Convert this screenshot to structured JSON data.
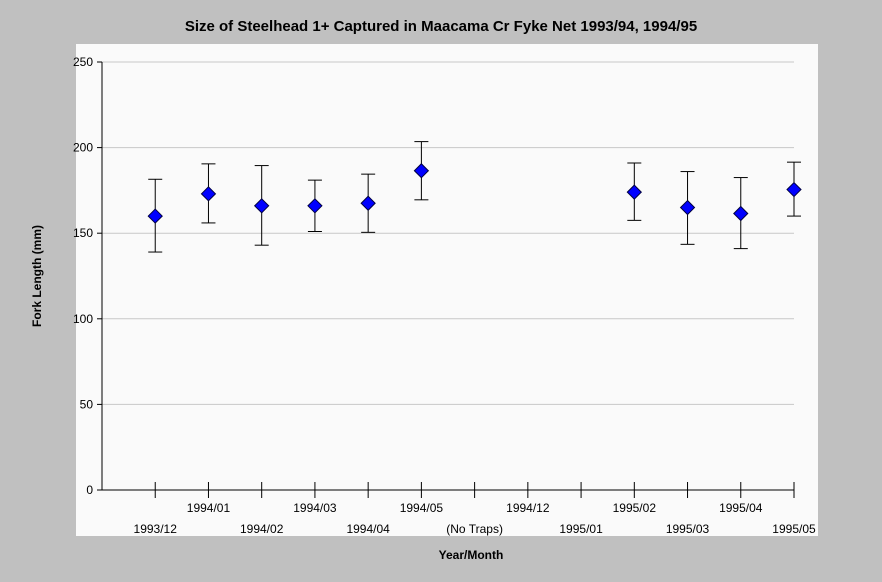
{
  "chart_data": {
    "type": "scatter",
    "title": "Size of Steelhead 1+ Captured in Maacama Cr Fyke Net 1993/94, 1994/95",
    "xlabel": "Year/Month",
    "ylabel": "Fork Length (mm)",
    "ylim": [
      0,
      250
    ],
    "y_ticks": [
      "0",
      "50",
      "100",
      "150",
      "200",
      "250"
    ],
    "grid": true,
    "categories": [
      "1993/12",
      "1994/01",
      "1994/02",
      "1994/03",
      "1994/04",
      "1994/05",
      "(No Traps)",
      "1994/12",
      "1995/01",
      "1995/02",
      "1995/03",
      "1995/04",
      "1995/05"
    ],
    "series": [
      {
        "marker": "diamond",
        "color": "#0000ff",
        "values": [
          160,
          173,
          166,
          166,
          167.5,
          186.5,
          null,
          null,
          null,
          174,
          165,
          161.5,
          175.5
        ],
        "error_low": [
          139,
          156,
          143,
          151,
          150.5,
          169.5,
          null,
          null,
          null,
          157.5,
          143.5,
          141,
          160
        ],
        "error_high": [
          181.5,
          190.5,
          189.5,
          181,
          184.5,
          203.5,
          null,
          null,
          null,
          191,
          186,
          182.5,
          191.5
        ]
      }
    ]
  }
}
